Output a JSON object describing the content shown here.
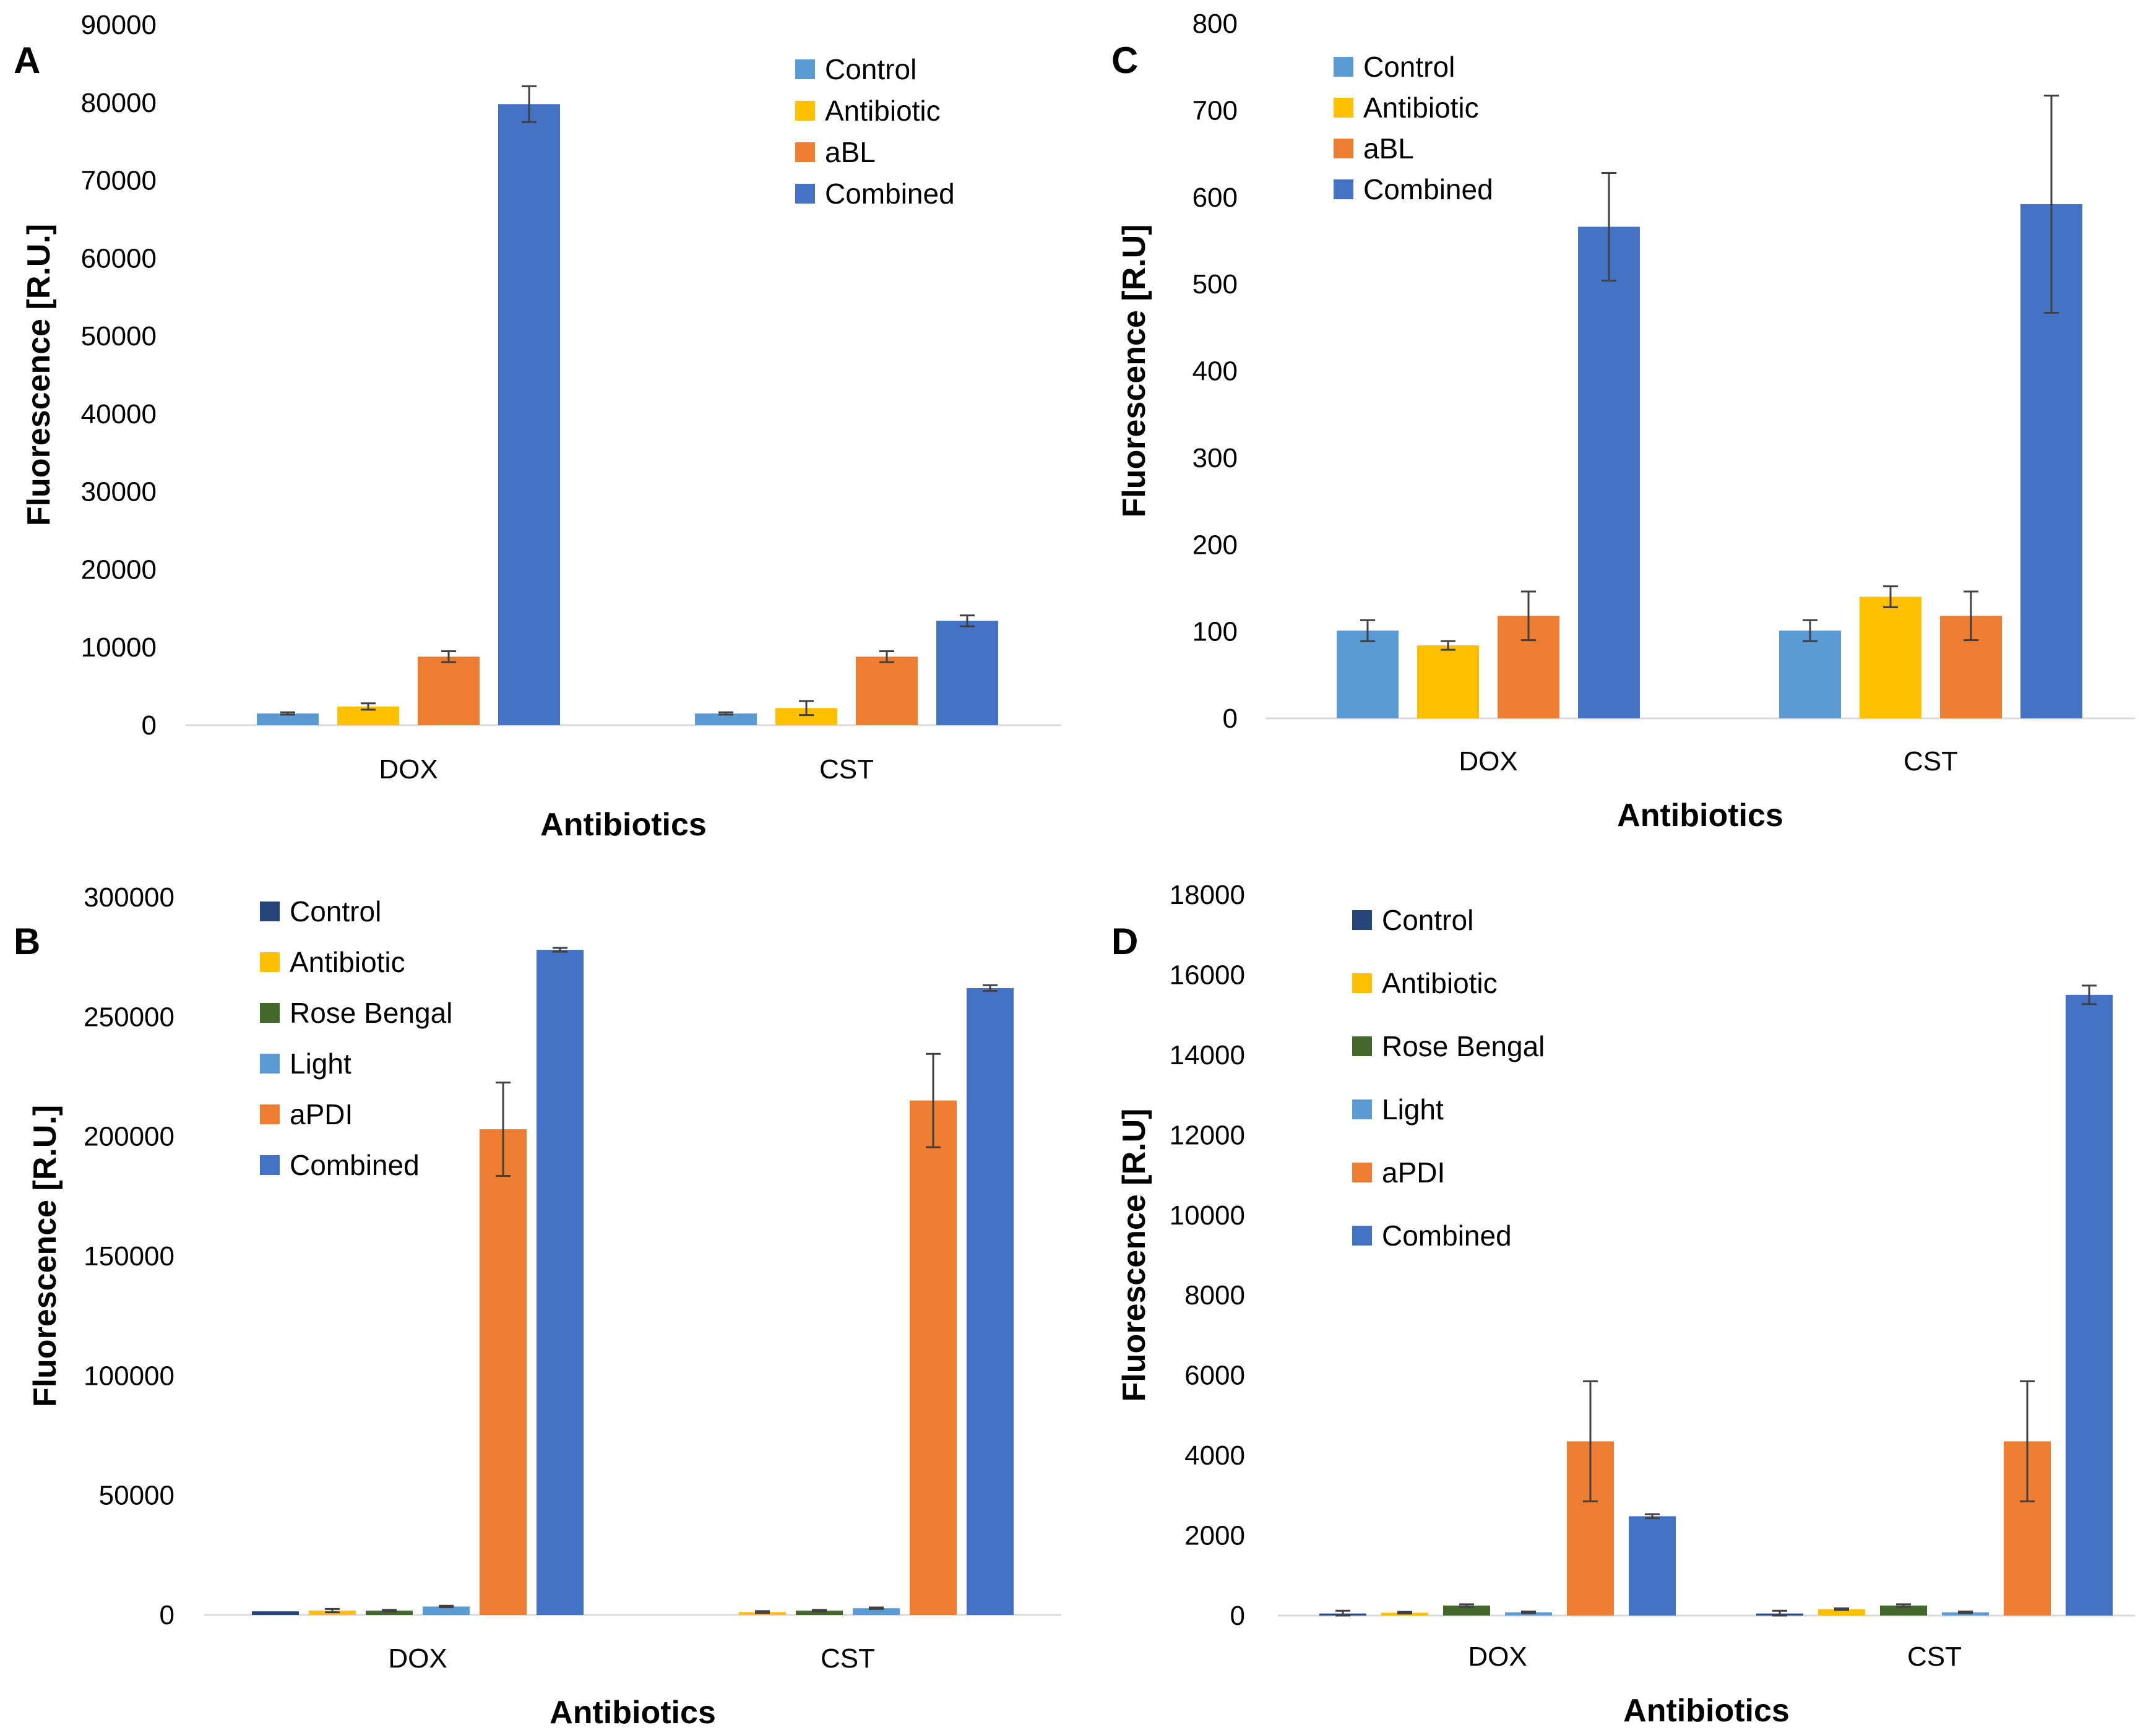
{
  "chart_data": [
    {
      "panel": "A",
      "type": "bar",
      "title": "",
      "xlabel": "Antibiotics",
      "ylabel": "Fluorescence [R.U.]",
      "ylim": [
        0,
        90000
      ],
      "yticks": [
        0,
        10000,
        20000,
        30000,
        40000,
        50000,
        60000,
        70000,
        80000,
        90000
      ],
      "categories": [
        "DOX",
        "CST"
      ],
      "legend_position": "top-right",
      "series": [
        {
          "name": "Control",
          "color": "#5B9BD5",
          "values": [
            1500,
            1500
          ],
          "errors": [
            150,
            150
          ]
        },
        {
          "name": "Antibiotic",
          "color": "#FFC000",
          "values": [
            2400,
            2200
          ],
          "errors": [
            400,
            900
          ]
        },
        {
          "name": "aBL",
          "color": "#ED7D31",
          "values": [
            8800,
            8800
          ],
          "errors": [
            700,
            700
          ]
        },
        {
          "name": "Combined",
          "color": "#4472C4",
          "values": [
            79800,
            13400
          ],
          "errors": [
            2300,
            700
          ]
        }
      ]
    },
    {
      "panel": "C",
      "type": "bar",
      "title": "",
      "xlabel": "Antibiotics",
      "ylabel": "Fluorescence [R.U]",
      "ylim": [
        0,
        800
      ],
      "yticks": [
        0,
        100,
        200,
        300,
        400,
        500,
        600,
        700,
        800
      ],
      "categories": [
        "DOX",
        "CST"
      ],
      "legend_position": "top-left",
      "series": [
        {
          "name": "Control",
          "color": "#5B9BD5",
          "values": [
            101,
            101
          ],
          "errors": [
            12,
            12
          ]
        },
        {
          "name": "Antibiotic",
          "color": "#FFC000",
          "values": [
            84,
            140
          ],
          "errors": [
            5,
            12
          ]
        },
        {
          "name": "aBL",
          "color": "#ED7D31",
          "values": [
            118,
            118
          ],
          "errors": [
            28,
            28
          ]
        },
        {
          "name": "Combined",
          "color": "#4472C4",
          "values": [
            566,
            592
          ],
          "errors": [
            62,
            125
          ]
        }
      ]
    },
    {
      "panel": "B",
      "type": "bar",
      "title": "",
      "xlabel": "Antibiotics",
      "ylabel": "Fluorescence [R.U.]",
      "ylim": [
        0,
        300000
      ],
      "yticks": [
        0,
        50000,
        100000,
        150000,
        200000,
        250000,
        300000
      ],
      "categories": [
        "DOX",
        "CST"
      ],
      "legend_position": "top-left",
      "series": [
        {
          "name": "Control",
          "color": "#264478",
          "values": [
            1500,
            0
          ],
          "errors": [
            0,
            0
          ]
        },
        {
          "name": "Antibiotic",
          "color": "#FFC000",
          "values": [
            1800,
            1200
          ],
          "errors": [
            700,
            400
          ]
        },
        {
          "name": "Rose Bengal",
          "color": "#43682B",
          "values": [
            1800,
            1800
          ],
          "errors": [
            300,
            300
          ]
        },
        {
          "name": "Light",
          "color": "#5B9BD5",
          "values": [
            3500,
            2800
          ],
          "errors": [
            300,
            300
          ]
        },
        {
          "name": "aPDI",
          "color": "#ED7D31",
          "values": [
            203000,
            215000
          ],
          "errors": [
            19500,
            19500
          ]
        },
        {
          "name": "Combined",
          "color": "#4472C4",
          "values": [
            278000,
            262000
          ],
          "errors": [
            800,
            1200
          ]
        }
      ]
    },
    {
      "panel": "D",
      "type": "bar",
      "title": "",
      "xlabel": "Antibiotics",
      "ylabel": "Fluorescence [R.U]",
      "ylim": [
        0,
        18000
      ],
      "yticks": [
        0,
        2000,
        4000,
        6000,
        8000,
        10000,
        12000,
        14000,
        16000,
        18000
      ],
      "categories": [
        "DOX",
        "CST"
      ],
      "legend_position": "top-left",
      "series": [
        {
          "name": "Control",
          "color": "#264478",
          "values": [
            50,
            50
          ],
          "errors": [
            70,
            70
          ]
        },
        {
          "name": "Antibiotic",
          "color": "#FFC000",
          "values": [
            70,
            160
          ],
          "errors": [
            20,
            20
          ]
        },
        {
          "name": "Rose Bengal",
          "color": "#43682B",
          "values": [
            250,
            250
          ],
          "errors": [
            30,
            30
          ]
        },
        {
          "name": "Light",
          "color": "#5B9BD5",
          "values": [
            80,
            80
          ],
          "errors": [
            20,
            20
          ]
        },
        {
          "name": "aPDI",
          "color": "#ED7D31",
          "values": [
            4350,
            4350
          ],
          "errors": [
            1500,
            1500
          ]
        },
        {
          "name": "Combined",
          "color": "#4472C4",
          "values": [
            2480,
            15500
          ],
          "errors": [
            50,
            230
          ]
        }
      ]
    }
  ]
}
